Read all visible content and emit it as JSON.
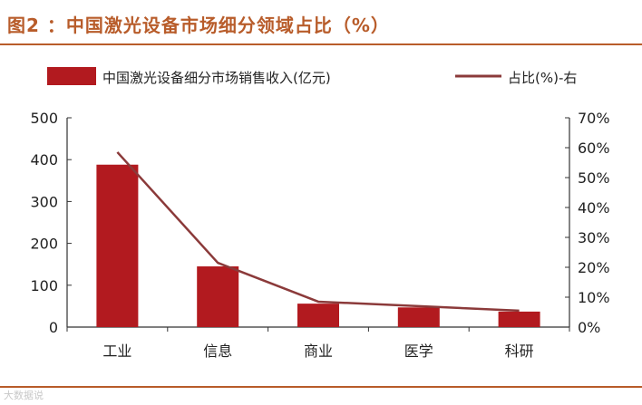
{
  "figure": {
    "title": "图2 ：中国激光设备市场细分领域占比（%）",
    "watermark": "大数据说"
  },
  "colors": {
    "accent": "#b85c2a",
    "bar": "#b21a1f",
    "line": "#8b3a3a",
    "text": "#222222"
  },
  "chart_data": {
    "type": "bar",
    "categories": [
      "工业",
      "信息",
      "商业",
      "医学",
      "科研"
    ],
    "series": [
      {
        "name": "中国激光设备细分市场销售收入(亿元)",
        "type": "bar",
        "axis": "left",
        "values": [
          388,
          145,
          56,
          47,
          37
        ]
      },
      {
        "name": "占比(%)-右",
        "type": "line",
        "axis": "right",
        "values": [
          58.5,
          21.5,
          8.5,
          7.0,
          5.5
        ]
      }
    ],
    "y_left": {
      "ticks": [
        0,
        100,
        200,
        300,
        400,
        500
      ],
      "ylim": [
        0,
        500
      ]
    },
    "y_right": {
      "ticks": [
        "0%",
        "10%",
        "20%",
        "30%",
        "40%",
        "50%",
        "60%",
        "70%"
      ],
      "ylim": [
        0,
        70
      ]
    },
    "legend_position": "top",
    "grid": false,
    "xlabel": "",
    "ylabel": ""
  }
}
